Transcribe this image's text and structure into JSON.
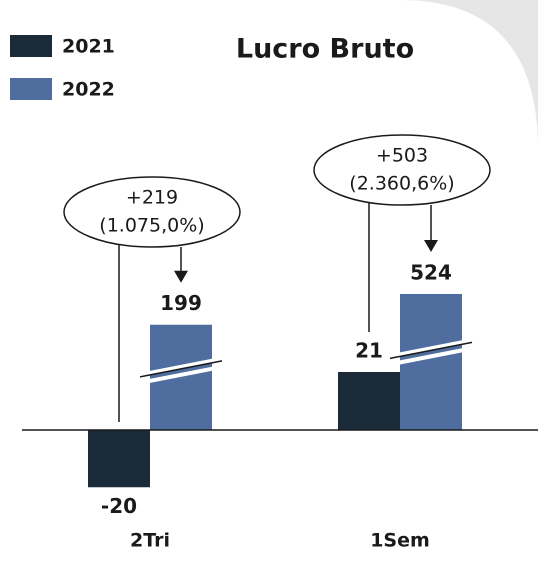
{
  "chart_data": {
    "type": "bar",
    "title": "Lucro Bruto",
    "categories": [
      "2Tri",
      "1Sem"
    ],
    "series": [
      {
        "name": "2021",
        "color": "#1b2a38",
        "values": [
          -20,
          21
        ]
      },
      {
        "name": "2022",
        "color": "#4f6e9f",
        "values": [
          199,
          524
        ]
      }
    ],
    "annotations": [
      {
        "text": "+219",
        "subtext": "(1.075,0%)"
      },
      {
        "text": "+503",
        "subtext": "(2.360,6%)"
      }
    ],
    "broken_axis": true
  }
}
